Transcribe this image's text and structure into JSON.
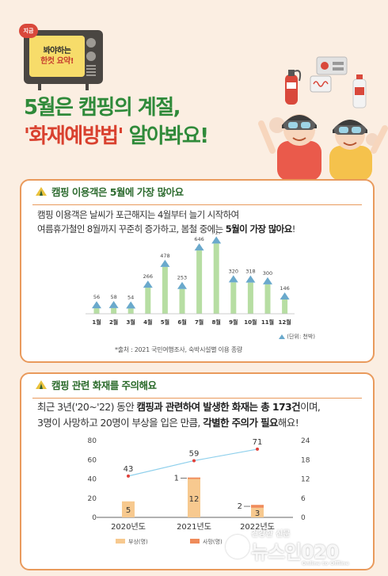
{
  "header": {
    "tv_badge": "지금",
    "tv_line1": "봐야하는",
    "tv_line2": "한컷 요약!",
    "title_line1": "5월은 캠핑의 계절,",
    "title_line2_highlight": "'화재예방법'",
    "title_line2_rest": " 알아봐요!"
  },
  "section1": {
    "title": "캠핑 이용객은 5월에 가장 많아요",
    "desc_line1": "캠핑 이용객은 날씨가 포근해지는 4월부터 늘기 시작하여",
    "desc_line2_pre": "여름휴가철인 8월까지 꾸준히 증가하고, 봄철 중에는 ",
    "desc_line2_bold": "5월이 가장 많아요",
    "desc_line2_post": "!",
    "unit": "(단위: 천박)",
    "source": "*출처 : 2021 국민여행조사, 숙박시설별 이용 종량"
  },
  "section2": {
    "title": "캠핑 관련 화재를 주의해요",
    "desc_line1_pre": "최근 3년('20~'22) 동안 ",
    "desc_line1_bold": "캠핑과 관련하여 발생한 화재는 총 173건",
    "desc_line1_post": "이며,",
    "desc_line2_pre": "3명이 사망하고 20명이 부상을 입은 만큼, ",
    "desc_line2_bold": "각별한 주의가 필요",
    "desc_line2_post": "해요!"
  },
  "watermark": {
    "slogan": "건강한 신문",
    "name": "뉴스인020",
    "sub": "Online to Offline"
  },
  "colors": {
    "green": "#2f8a3a",
    "red": "#d9412f",
    "orange_border": "#e99a5c",
    "bar_green": "#b7dea3",
    "bar_orange": "#f7c98f"
  },
  "chart_data": [
    {
      "type": "bar",
      "categories": [
        "1월",
        "2월",
        "3월",
        "4월",
        "5월",
        "6월",
        "7월",
        "8월",
        "9월",
        "10월",
        "11월",
        "12월"
      ],
      "values": [
        56,
        58,
        54,
        266,
        478,
        253,
        646,
        717,
        320,
        318,
        300,
        146
      ],
      "ylim": [
        0,
        760
      ],
      "grid": false,
      "legend": "bottom-right"
    },
    {
      "type": "bar",
      "categories": [
        "2020년도",
        "2021년도",
        "2022년도"
      ],
      "series": [
        {
          "name": "부상(명)",
          "values": [
            5,
            12,
            3
          ]
        },
        {
          "name": "사망(명)",
          "values": [
            0,
            1,
            2
          ]
        },
        {
          "values": [
            43,
            59,
            71
          ]
        }
      ],
      "left_ticks": [
        0,
        20,
        40,
        60,
        80
      ],
      "right_ticks": [
        0,
        6,
        12,
        18,
        24
      ],
      "ylim_left": [
        0,
        80
      ],
      "ylim_right": [
        0,
        24
      ],
      "legend": "bottom"
    }
  ]
}
